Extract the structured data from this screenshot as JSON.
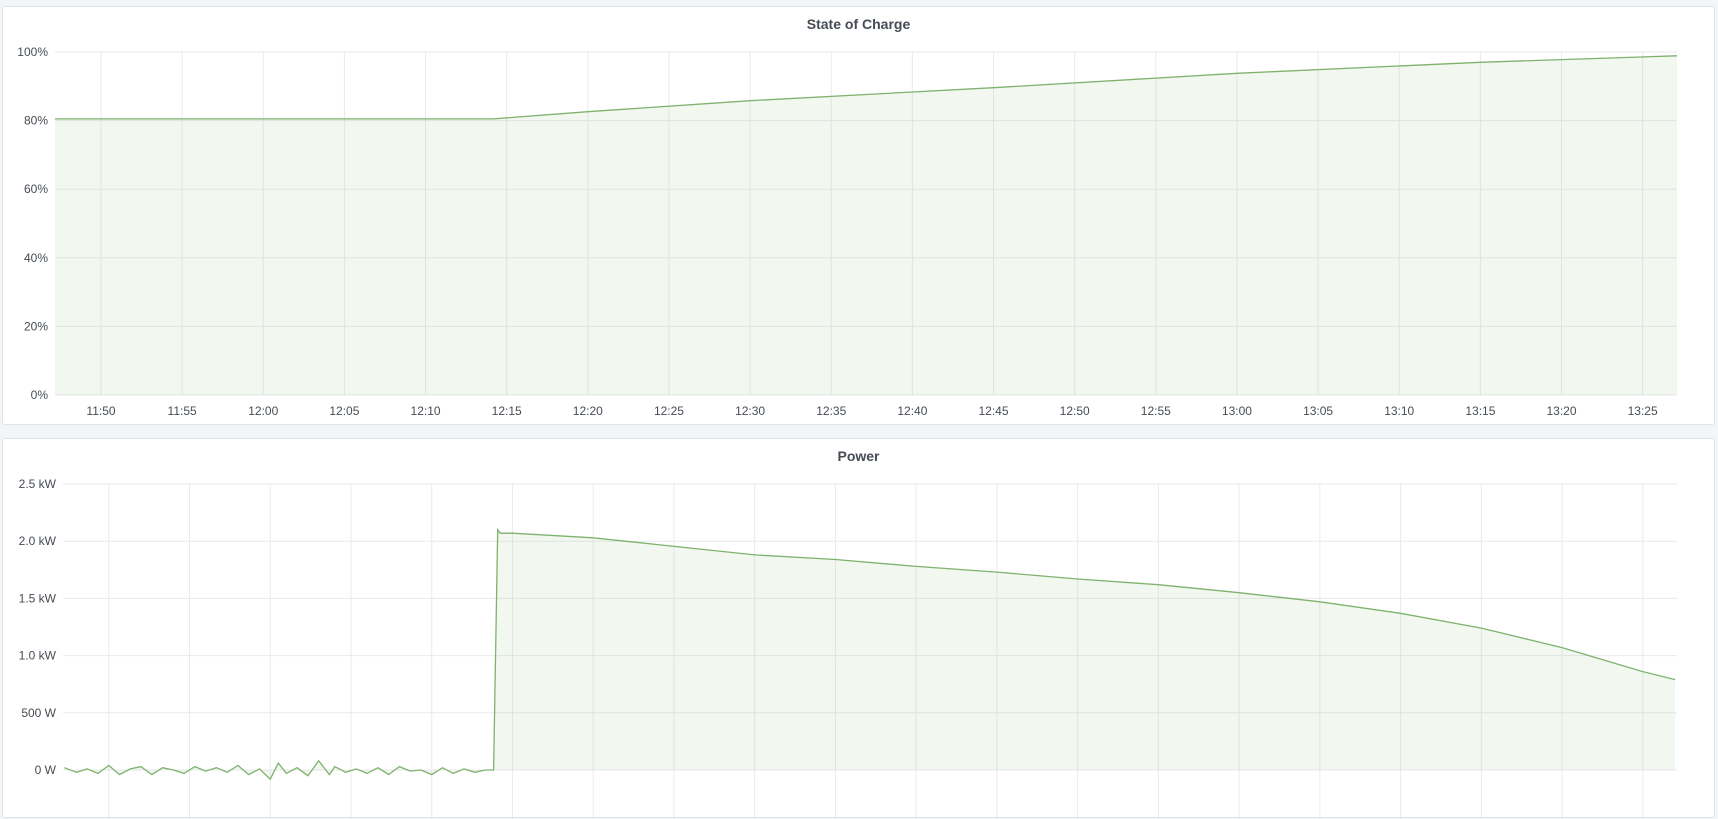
{
  "chart_data": [
    {
      "type": "area",
      "title": "State of Charge",
      "xlim": [
        "11:47:10",
        "13:27:07"
      ],
      "ylim": [
        0,
        100
      ],
      "yticks": [
        "0%",
        "20%",
        "40%",
        "60%",
        "80%",
        "100%"
      ],
      "ytick_values": [
        0,
        20,
        40,
        60,
        80,
        100
      ],
      "xticks": [
        "11:50",
        "11:55",
        "12:00",
        "12:05",
        "12:10",
        "12:15",
        "12:20",
        "12:25",
        "12:30",
        "12:35",
        "12:40",
        "12:45",
        "12:50",
        "12:55",
        "13:00",
        "13:05",
        "13:10",
        "13:15",
        "13:20",
        "13:25"
      ],
      "grid": true,
      "color": "#7eb26d",
      "x": [
        "11:47:10",
        "12:14:10",
        "12:20",
        "12:30",
        "12:45",
        "13:00",
        "13:15",
        "13:27:07"
      ],
      "y": [
        80.5,
        80.5,
        82.6,
        85.8,
        89.6,
        93.8,
        97.0,
        98.9
      ]
    },
    {
      "type": "area",
      "title": "Power",
      "xlim": [
        "11:47:10",
        "13:27:07"
      ],
      "ylim": [
        0,
        2500
      ],
      "yticks": [
        "0 W",
        "500 W",
        "1.0 kW",
        "1.5 kW",
        "2.0 kW",
        "2.5 kW"
      ],
      "ytick_values": [
        0,
        500,
        1000,
        1500,
        2000,
        2500
      ],
      "xgrid": [
        "11:50",
        "11:55",
        "12:00",
        "12:05",
        "12:10",
        "12:15",
        "12:20",
        "12:25",
        "12:30",
        "12:35",
        "12:40",
        "12:45",
        "12:50",
        "12:55",
        "13:00",
        "13:05",
        "13:10",
        "13:15",
        "13:20",
        "13:25"
      ],
      "grid": true,
      "color": "#7eb26d",
      "x": [
        "11:47:15",
        "11:48",
        "11:48:40",
        "11:49:20",
        "11:50",
        "11:50:40",
        "11:51:20",
        "11:52",
        "11:52:40",
        "11:53:20",
        "11:54",
        "11:54:40",
        "11:55:20",
        "11:56",
        "11:56:40",
        "11:57:20",
        "11:58",
        "11:58:40",
        "11:59:20",
        "12:00",
        "12:00:30",
        "12:01",
        "12:01:40",
        "12:02:20",
        "12:03",
        "12:03:40",
        "12:04",
        "12:04:40",
        "12:05:20",
        "12:06",
        "12:06:40",
        "12:07:20",
        "12:08",
        "12:08:40",
        "12:09:20",
        "12:10",
        "12:10:40",
        "12:11:20",
        "12:12",
        "12:12:40",
        "12:13:20",
        "12:13:50",
        "12:14:05",
        "12:14:15",
        "12:15",
        "12:20",
        "12:24",
        "12:30",
        "12:35",
        "12:40",
        "12:45",
        "12:50",
        "12:55",
        "13:00",
        "13:05",
        "13:10",
        "13:15",
        "13:20",
        "13:25",
        "13:27:00"
      ],
      "y": [
        20,
        -20,
        10,
        -30,
        40,
        -40,
        10,
        30,
        -40,
        20,
        0,
        -30,
        30,
        -10,
        20,
        -20,
        40,
        -40,
        10,
        -80,
        60,
        -30,
        20,
        -50,
        80,
        -40,
        30,
        -20,
        10,
        -30,
        20,
        -40,
        30,
        -10,
        0,
        -40,
        20,
        -30,
        10,
        -20,
        0,
        0,
        2100,
        2070,
        2070,
        2030,
        1970,
        1880,
        1840,
        1780,
        1730,
        1670,
        1620,
        1550,
        1470,
        1370,
        1240,
        1070,
        860,
        790
      ]
    }
  ]
}
